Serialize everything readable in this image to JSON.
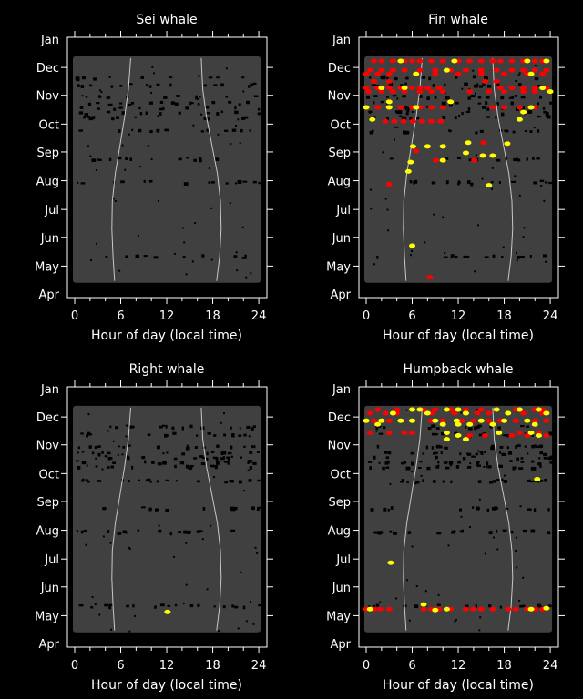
{
  "chart_data": [
    {
      "type": "scatter",
      "title": "Sei whale",
      "xlabel": "Hour of day (local time)",
      "xlim": [
        0,
        24
      ],
      "xticks": [
        "0",
        "6",
        "12",
        "18",
        "24"
      ],
      "yticks": [
        {
          "label": "Apr",
          "day": 0
        },
        {
          "label": "May",
          "day": 30
        },
        {
          "label": "Jun",
          "day": 61
        },
        {
          "label": "Jul",
          "day": 91
        },
        {
          "label": "Aug",
          "day": 122
        },
        {
          "label": "Sep",
          "day": 153
        },
        {
          "label": "Oct",
          "day": 183
        },
        {
          "label": "Nov",
          "day": 214
        },
        {
          "label": "Dec",
          "day": 244
        },
        {
          "label": "Jan",
          "day": 275
        }
      ],
      "effort_days": [
        14,
        254
      ],
      "red": [],
      "yellow": []
    },
    {
      "type": "scatter",
      "title": "Fin whale",
      "xlabel": "Hour of day (local time)",
      "xlim": [
        0,
        24
      ],
      "xticks": [
        "0",
        "6",
        "12",
        "18",
        "24"
      ],
      "yticks": [
        {
          "label": "Apr",
          "day": 0
        },
        {
          "label": "May",
          "day": 30
        },
        {
          "label": "Jun",
          "day": 61
        },
        {
          "label": "Jul",
          "day": 91
        },
        {
          "label": "Aug",
          "day": 122
        },
        {
          "label": "Sep",
          "day": 153
        },
        {
          "label": "Oct",
          "day": 183
        },
        {
          "label": "Nov",
          "day": 214
        },
        {
          "label": "Dec",
          "day": 244
        },
        {
          "label": "Jan",
          "day": 275
        }
      ],
      "effort_days": [
        14,
        254
      ],
      "red": [
        [
          1,
          251
        ],
        [
          2,
          251
        ],
        [
          3.5,
          251
        ],
        [
          5,
          251
        ],
        [
          6,
          251
        ],
        [
          7,
          251
        ],
        [
          8.5,
          251
        ],
        [
          10,
          251
        ],
        [
          12,
          251
        ],
        [
          13.5,
          251
        ],
        [
          15,
          251
        ],
        [
          16.5,
          251
        ],
        [
          17.5,
          251
        ],
        [
          19,
          251
        ],
        [
          20.5,
          251
        ],
        [
          22,
          251
        ],
        [
          23,
          251
        ],
        [
          0.5,
          241
        ],
        [
          2,
          241
        ],
        [
          3.5,
          241
        ],
        [
          5,
          241
        ],
        [
          7,
          241
        ],
        [
          9,
          241
        ],
        [
          11,
          241
        ],
        [
          13,
          241
        ],
        [
          15,
          241
        ],
        [
          17,
          241
        ],
        [
          19,
          241
        ],
        [
          20.5,
          241
        ],
        [
          22,
          241
        ],
        [
          23.5,
          241
        ],
        [
          0,
          237
        ],
        [
          1.5,
          237
        ],
        [
          3,
          237
        ],
        [
          9,
          237
        ],
        [
          12,
          237
        ],
        [
          15,
          237
        ],
        [
          18,
          237
        ],
        [
          21,
          237
        ],
        [
          23,
          237
        ],
        [
          1,
          229
        ],
        [
          3,
          229
        ],
        [
          15.5,
          229
        ],
        [
          17,
          229
        ],
        [
          0,
          222
        ],
        [
          1.5,
          222
        ],
        [
          3,
          222
        ],
        [
          4.5,
          222
        ],
        [
          6,
          222
        ],
        [
          7,
          222
        ],
        [
          8,
          222
        ],
        [
          9.5,
          222
        ],
        [
          17.5,
          222
        ],
        [
          19,
          222
        ],
        [
          20.5,
          222
        ],
        [
          22,
          222
        ],
        [
          23.5,
          222
        ],
        [
          0.3,
          218
        ],
        [
          2,
          218
        ],
        [
          3.5,
          218
        ],
        [
          5,
          218
        ],
        [
          7,
          218
        ],
        [
          8.5,
          218
        ],
        [
          10,
          218
        ],
        [
          13.5,
          218
        ],
        [
          16,
          218
        ],
        [
          18,
          218
        ],
        [
          20.5,
          218
        ],
        [
          22,
          218
        ],
        [
          0,
          201
        ],
        [
          1.5,
          201
        ],
        [
          3,
          201
        ],
        [
          4.5,
          201
        ],
        [
          6,
          201
        ],
        [
          7,
          201
        ],
        [
          8.5,
          201
        ],
        [
          10,
          201
        ],
        [
          16.5,
          201
        ],
        [
          18,
          201
        ],
        [
          20,
          201
        ],
        [
          22,
          201
        ],
        [
          2.5,
          186
        ],
        [
          3.7,
          186
        ],
        [
          4.9,
          186
        ],
        [
          6.1,
          186
        ],
        [
          7.3,
          186
        ],
        [
          8.5,
          186
        ],
        [
          9.7,
          186
        ],
        [
          6.5,
          154
        ],
        [
          15.3,
          163
        ],
        [
          9.1,
          144
        ],
        [
          14.1,
          144
        ],
        [
          3,
          118
        ],
        [
          8.3,
          18
        ]
      ],
      "yellow": [
        [
          4.5,
          251
        ],
        [
          11.5,
          251
        ],
        [
          21,
          251
        ],
        [
          23.5,
          251
        ],
        [
          10.5,
          241
        ],
        [
          6.5,
          237
        ],
        [
          21.5,
          237
        ],
        [
          2,
          222
        ],
        [
          5,
          222
        ],
        [
          23,
          222
        ],
        [
          24,
          218
        ],
        [
          3,
          207
        ],
        [
          11,
          207
        ],
        [
          0,
          201
        ],
        [
          3,
          201
        ],
        [
          6.5,
          201
        ],
        [
          21.5,
          201
        ],
        [
          20.5,
          196
        ],
        [
          0.8,
          188
        ],
        [
          20,
          188
        ],
        [
          6.1,
          159
        ],
        [
          8,
          159
        ],
        [
          10,
          159
        ],
        [
          13.3,
          163
        ],
        [
          18.4,
          162
        ],
        [
          13,
          152
        ],
        [
          15.2,
          149
        ],
        [
          16.5,
          149
        ],
        [
          5.8,
          142
        ],
        [
          10,
          144
        ],
        [
          5.5,
          132
        ],
        [
          16,
          117
        ],
        [
          6,
          52
        ]
      ]
    },
    {
      "type": "scatter",
      "title": "Right whale",
      "xlabel": "Hour of day (local time)",
      "xlim": [
        0,
        24
      ],
      "xticks": [
        "0",
        "6",
        "12",
        "18",
        "24"
      ],
      "yticks": [
        {
          "label": "Apr",
          "day": 0
        },
        {
          "label": "May",
          "day": 30
        },
        {
          "label": "Jun",
          "day": 61
        },
        {
          "label": "Jul",
          "day": 91
        },
        {
          "label": "Aug",
          "day": 122
        },
        {
          "label": "Sep",
          "day": 153
        },
        {
          "label": "Oct",
          "day": 183
        },
        {
          "label": "Nov",
          "day": 214
        },
        {
          "label": "Dec",
          "day": 244
        },
        {
          "label": "Jan",
          "day": 275
        }
      ],
      "effort_days": [
        14,
        254
      ],
      "red": [],
      "yellow": [
        [
          12.1,
          34
        ]
      ]
    },
    {
      "type": "scatter",
      "title": "Humpback whale",
      "xlabel": "Hour of day (local time)",
      "xlim": [
        0,
        24
      ],
      "xticks": [
        "0",
        "6",
        "12",
        "18",
        "24"
      ],
      "yticks": [
        {
          "label": "Apr",
          "day": 0
        },
        {
          "label": "May",
          "day": 30
        },
        {
          "label": "Jun",
          "day": 61
        },
        {
          "label": "Jul",
          "day": 91
        },
        {
          "label": "Aug",
          "day": 122
        },
        {
          "label": "Sep",
          "day": 153
        },
        {
          "label": "Oct",
          "day": 183
        },
        {
          "label": "Nov",
          "day": 214
        },
        {
          "label": "Dec",
          "day": 244
        },
        {
          "label": "Jan",
          "day": 275
        }
      ],
      "effort_days": [
        14,
        254
      ],
      "red": [
        [
          1.5,
          252
        ],
        [
          4,
          252
        ],
        [
          7.5,
          252
        ],
        [
          9,
          252
        ],
        [
          11,
          252
        ],
        [
          13,
          252
        ],
        [
          15,
          252
        ],
        [
          17,
          252
        ],
        [
          19.5,
          252
        ],
        [
          22,
          252
        ],
        [
          23,
          252
        ],
        [
          0.5,
          248
        ],
        [
          2.5,
          248
        ],
        [
          4,
          248
        ],
        [
          8.5,
          248
        ],
        [
          11.5,
          248
        ],
        [
          14.5,
          248
        ],
        [
          16,
          248
        ],
        [
          20.5,
          248
        ],
        [
          23,
          248
        ],
        [
          1,
          240
        ],
        [
          3,
          240
        ],
        [
          8.5,
          240
        ],
        [
          10,
          240
        ],
        [
          12.5,
          240
        ],
        [
          14,
          240
        ],
        [
          16,
          240
        ],
        [
          17.5,
          240
        ],
        [
          19.5,
          240
        ],
        [
          22,
          240
        ],
        [
          23.5,
          240
        ],
        [
          0.5,
          227
        ],
        [
          3,
          227
        ],
        [
          5,
          227
        ],
        [
          6,
          227
        ],
        [
          20,
          227
        ],
        [
          22.5,
          227
        ],
        [
          13.5,
          224
        ],
        [
          15.5,
          224
        ],
        [
          19,
          224
        ],
        [
          21,
          224
        ],
        [
          23.5,
          224
        ],
        [
          0,
          37
        ],
        [
          1,
          37
        ],
        [
          1.8,
          37
        ],
        [
          3,
          37
        ],
        [
          7.5,
          37
        ],
        [
          8.5,
          37
        ],
        [
          9.5,
          37
        ],
        [
          11,
          37
        ],
        [
          13,
          37
        ],
        [
          14,
          37
        ],
        [
          15,
          37
        ],
        [
          16.5,
          37
        ],
        [
          18.5,
          37
        ],
        [
          19.5,
          37
        ],
        [
          21,
          37
        ],
        [
          22,
          37
        ],
        [
          23,
          37
        ]
      ],
      "yellow": [
        [
          6,
          252
        ],
        [
          7,
          252
        ],
        [
          10.5,
          252
        ],
        [
          12,
          252
        ],
        [
          17,
          252
        ],
        [
          20,
          252
        ],
        [
          22.5,
          252
        ],
        [
          3.5,
          248
        ],
        [
          8,
          248
        ],
        [
          13,
          248
        ],
        [
          18.5,
          248
        ],
        [
          23.5,
          248
        ],
        [
          0,
          240
        ],
        [
          2,
          240
        ],
        [
          4.5,
          240
        ],
        [
          6,
          240
        ],
        [
          9,
          240
        ],
        [
          11.8,
          240
        ],
        [
          15,
          240
        ],
        [
          18,
          240
        ],
        [
          21,
          240
        ],
        [
          1.5,
          236
        ],
        [
          10,
          236
        ],
        [
          12,
          236
        ],
        [
          13.5,
          236
        ],
        [
          16.5,
          236
        ],
        [
          22,
          236
        ],
        [
          10.5,
          227
        ],
        [
          17.3,
          227
        ],
        [
          21.5,
          227
        ],
        [
          12,
          224
        ],
        [
          22.5,
          224
        ],
        [
          10.5,
          220
        ],
        [
          13,
          220
        ],
        [
          22.3,
          177
        ],
        [
          3.2,
          87
        ],
        [
          0.5,
          37
        ],
        [
          9,
          36
        ],
        [
          10.5,
          37
        ],
        [
          21.5,
          37
        ],
        [
          23.5,
          38
        ],
        [
          7.5,
          42
        ]
      ]
    }
  ],
  "twilight": {
    "dawn": [
      [
        14,
        5.2
      ],
      [
        40,
        5.0
      ],
      [
        70,
        4.85
      ],
      [
        100,
        4.9
      ],
      [
        130,
        5.3
      ],
      [
        160,
        5.9
      ],
      [
        190,
        6.5
      ],
      [
        220,
        7.0
      ],
      [
        254,
        7.3
      ]
    ],
    "dusk": [
      [
        14,
        18.5
      ],
      [
        40,
        18.9
      ],
      [
        70,
        19.1
      ],
      [
        100,
        19.0
      ],
      [
        130,
        18.6
      ],
      [
        160,
        17.9
      ],
      [
        190,
        17.2
      ],
      [
        220,
        16.7
      ],
      [
        254,
        16.5
      ]
    ]
  },
  "colors": {
    "effort": "#404040",
    "red": "#ff0000",
    "yellow": "#ffff00",
    "twilight": "#c8c8c8"
  }
}
